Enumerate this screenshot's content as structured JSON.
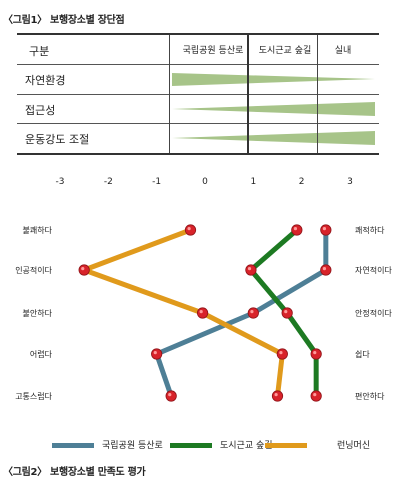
{
  "figure1": {
    "title": "〈그림1〉 보행장소별 장단점",
    "header": {
      "col0": "구분",
      "col1": "국립공원 등산로",
      "col2": "도시근교 숲길",
      "col3": "실내"
    },
    "rows": [
      {
        "label": "자연환경"
      },
      {
        "label": "접근성"
      },
      {
        "label": "운동강도 조절"
      }
    ],
    "wedge_color": "#a7c489"
  },
  "figure2": {
    "title": "〈그림2〉 보행장소별 만족도 평가"
  },
  "chart_data": {
    "type": "line",
    "orientation": "horizontal-values",
    "xlim": [
      -3,
      3
    ],
    "x_ticks": [
      "-3",
      "-2",
      "-1",
      "0",
      "1",
      "2",
      "3"
    ],
    "categories_left": [
      "불쾌하다",
      "인공적이다",
      "불안하다",
      "어렵다",
      "고통스럽다"
    ],
    "categories_right": [
      "쾌적하다",
      "자연적이다",
      "안정적이다",
      "쉽다",
      "편안하다"
    ],
    "series": [
      {
        "name": "국립공원 등산로",
        "color": "#4e7f96",
        "values": [
          2.5,
          2.5,
          1.0,
          -1.0,
          -0.7
        ]
      },
      {
        "name": "도시근교 숲길",
        "color": "#1d7a22",
        "values": [
          1.9,
          0.95,
          1.7,
          2.3,
          2.3
        ]
      },
      {
        "name": "런닝머신",
        "color": "#e09a1c",
        "values": [
          -0.3,
          -2.5,
          -0.05,
          1.6,
          1.5
        ]
      }
    ],
    "marker_color": "#d8232a",
    "grid": false
  }
}
